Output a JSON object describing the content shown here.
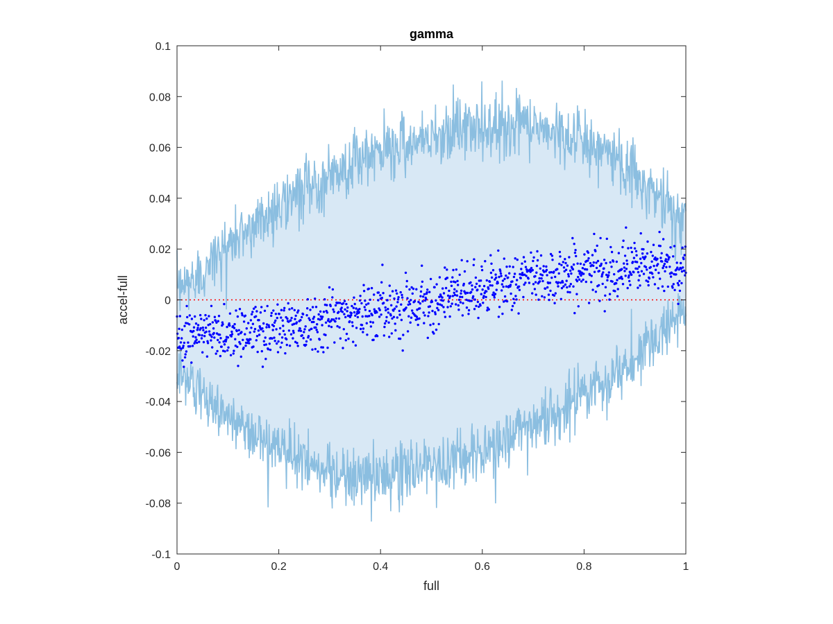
{
  "chart_data": {
    "type": "scatter",
    "title": "gamma",
    "xlabel": "full",
    "ylabel": "accel-full",
    "xlim": [
      0,
      1
    ],
    "ylim": [
      -0.1,
      0.1
    ],
    "xticks": [
      0,
      0.2,
      0.4,
      0.6,
      0.8,
      1
    ],
    "xtick_labels": [
      "0",
      "0.2",
      "0.4",
      "0.6",
      "0.8",
      "1"
    ],
    "yticks": [
      -0.1,
      -0.08,
      -0.06,
      -0.04,
      -0.02,
      0,
      0.02,
      0.04,
      0.06,
      0.08,
      0.1
    ],
    "ytick_labels": [
      "-0.1",
      "-0.08",
      "-0.06",
      "-0.04",
      "-0.02",
      "0",
      "0.02",
      "0.04",
      "0.06",
      "0.08",
      "0.1"
    ],
    "grid": false,
    "colors": {
      "band_fill": "#d8e8f5",
      "band_line": "#8bbee0",
      "points": "#0000ff",
      "zero_line": "#ff0000",
      "axes": "#262626"
    },
    "reference_line": {
      "y": 0,
      "style": "dotted"
    },
    "band": {
      "x": [
        0,
        0.05,
        0.1,
        0.15,
        0.2,
        0.25,
        0.3,
        0.35,
        0.4,
        0.45,
        0.5,
        0.55,
        0.6,
        0.65,
        0.7,
        0.75,
        0.8,
        0.85,
        0.9,
        0.95,
        1
      ],
      "upper": [
        0.003,
        0.012,
        0.021,
        0.03,
        0.037,
        0.043,
        0.049,
        0.054,
        0.058,
        0.062,
        0.065,
        0.067,
        0.068,
        0.069,
        0.068,
        0.066,
        0.062,
        0.057,
        0.05,
        0.04,
        0.03
      ],
      "lower": [
        -0.028,
        -0.038,
        -0.046,
        -0.053,
        -0.059,
        -0.064,
        -0.068,
        -0.07,
        -0.07,
        -0.068,
        -0.066,
        -0.063,
        -0.059,
        -0.055,
        -0.05,
        -0.044,
        -0.038,
        -0.031,
        -0.023,
        -0.013,
        -0.005
      ],
      "noise": 0.006
    },
    "scatter_trend": {
      "x": [
        0,
        0.1,
        0.2,
        0.3,
        0.4,
        0.5,
        0.6,
        0.7,
        0.8,
        0.9,
        1
      ],
      "y": [
        -0.014,
        -0.013,
        -0.011,
        -0.007,
        -0.004,
        0.0,
        0.004,
        0.009,
        0.011,
        0.013,
        0.013
      ],
      "spread": 0.0055,
      "count": 1200
    }
  }
}
